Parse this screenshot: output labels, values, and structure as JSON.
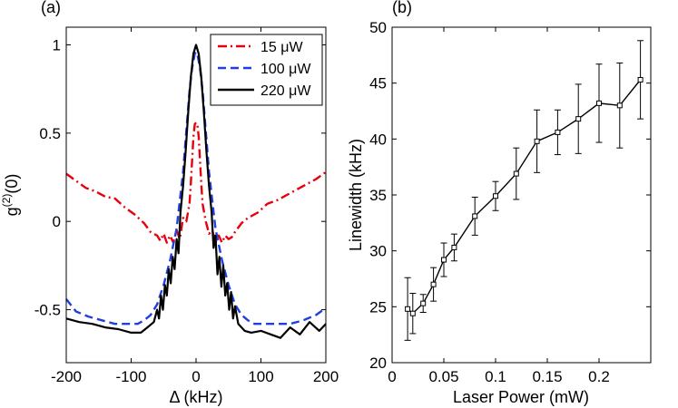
{
  "chart_data": [
    {
      "type": "line",
      "panel_label": "(a)",
      "xlabel": "Δ (kHz)",
      "ylabel": "g(2)(0)",
      "ylabel_base": "g",
      "ylabel_sup": "(2)",
      "ylabel_tail": "(0)",
      "xlim": [
        -200,
        200
      ],
      "ylim": [
        -0.8,
        1.1
      ],
      "xticks": [
        -200,
        -100,
        0,
        100,
        200
      ],
      "yticks": [
        -0.5,
        0,
        0.5,
        1
      ],
      "legend_position": "top-right",
      "series": [
        {
          "name": "15 μW",
          "color": "#e8000b",
          "style": "dashdot",
          "x": [
            -200,
            -185,
            -170,
            -155,
            -140,
            -125,
            -110,
            -95,
            -80,
            -70,
            -60,
            -55,
            -50,
            -45,
            -40,
            -35,
            -30,
            -25,
            -20,
            -15,
            -10,
            -8,
            -6,
            -4,
            -2,
            0,
            2,
            4,
            6,
            8,
            10,
            15,
            20,
            25,
            30,
            35,
            40,
            45,
            50,
            55,
            60,
            70,
            80,
            95,
            110,
            125,
            140,
            155,
            170,
            185,
            200
          ],
          "y": [
            0.27,
            0.23,
            0.19,
            0.17,
            0.14,
            0.13,
            0.08,
            0.04,
            -0.01,
            -0.06,
            -0.08,
            -0.11,
            -0.07,
            -0.12,
            -0.08,
            -0.12,
            -0.05,
            -0.1,
            0.02,
            0.0,
            0.1,
            0.22,
            0.35,
            0.48,
            0.55,
            0.56,
            0.55,
            0.48,
            0.35,
            0.22,
            0.1,
            0.0,
            -0.07,
            -0.05,
            -0.12,
            -0.08,
            -0.12,
            -0.08,
            -0.1,
            -0.09,
            -0.06,
            -0.01,
            0.02,
            0.05,
            0.1,
            0.12,
            0.15,
            0.18,
            0.21,
            0.24,
            0.28
          ]
        },
        {
          "name": "100 μW",
          "color": "#1f3fe0",
          "style": "dashed",
          "x": [
            -200,
            -185,
            -165,
            -145,
            -125,
            -105,
            -90,
            -80,
            -70,
            -60,
            -50,
            -40,
            -30,
            -20,
            -10,
            -6,
            -2,
            0,
            2,
            6,
            10,
            20,
            30,
            40,
            50,
            60,
            70,
            80,
            90,
            105,
            125,
            145,
            165,
            185,
            200
          ],
          "y": [
            -0.44,
            -0.51,
            -0.54,
            -0.56,
            -0.58,
            -0.58,
            -0.58,
            -0.56,
            -0.53,
            -0.47,
            -0.36,
            -0.22,
            -0.04,
            0.28,
            0.74,
            0.87,
            0.95,
            0.96,
            0.95,
            0.87,
            0.74,
            0.28,
            -0.04,
            -0.22,
            -0.36,
            -0.47,
            -0.53,
            -0.56,
            -0.58,
            -0.58,
            -0.58,
            -0.58,
            -0.56,
            -0.53,
            -0.49
          ]
        },
        {
          "name": "220 μW",
          "color": "#000000",
          "style": "solid",
          "x": [
            -200,
            -180,
            -160,
            -140,
            -120,
            -100,
            -85,
            -75,
            -65,
            -60,
            -57,
            -54,
            -51,
            -48,
            -45,
            -42,
            -39,
            -36,
            -33,
            -30,
            -27,
            -24,
            -20,
            -16,
            -12,
            -8,
            -4,
            0,
            4,
            8,
            12,
            16,
            20,
            24,
            27,
            30,
            33,
            36,
            39,
            42,
            45,
            48,
            51,
            54,
            57,
            60,
            65,
            75,
            85,
            100,
            115,
            130,
            145,
            160,
            175,
            190,
            200
          ],
          "y": [
            -0.55,
            -0.57,
            -0.58,
            -0.6,
            -0.61,
            -0.63,
            -0.63,
            -0.6,
            -0.57,
            -0.5,
            -0.55,
            -0.42,
            -0.5,
            -0.36,
            -0.42,
            -0.27,
            -0.35,
            -0.2,
            -0.27,
            -0.1,
            -0.18,
            0.05,
            0.2,
            0.4,
            0.62,
            0.82,
            0.95,
            1.0,
            0.95,
            0.82,
            0.62,
            0.4,
            0.2,
            0.05,
            -0.15,
            -0.08,
            -0.3,
            -0.2,
            -0.37,
            -0.25,
            -0.42,
            -0.35,
            -0.5,
            -0.4,
            -0.55,
            -0.48,
            -0.58,
            -0.62,
            -0.63,
            -0.62,
            -0.64,
            -0.66,
            -0.6,
            -0.64,
            -0.57,
            -0.62,
            -0.58
          ]
        }
      ]
    },
    {
      "type": "line",
      "panel_label": "(b)",
      "xlabel": "Laser Power (mW)",
      "ylabel": "Linewidth (kHz)",
      "xlim": [
        0,
        0.25
      ],
      "ylim": [
        20,
        50
      ],
      "xticks": [
        0,
        0.05,
        0.1,
        0.15,
        0.2
      ],
      "xtick_labels": [
        "0",
        "0.05",
        "0.1",
        "0.15",
        "0.2"
      ],
      "yticks": [
        20,
        25,
        30,
        35,
        40,
        45,
        50
      ],
      "marker": "square",
      "error_bars": true,
      "series": [
        {
          "name": "Linewidth",
          "color": "#000000",
          "x": [
            0.015,
            0.02,
            0.03,
            0.04,
            0.05,
            0.06,
            0.08,
            0.1,
            0.12,
            0.14,
            0.16,
            0.18,
            0.2,
            0.22,
            0.24
          ],
          "y": [
            24.8,
            24.4,
            25.3,
            27.0,
            29.2,
            30.3,
            33.1,
            34.9,
            36.9,
            39.8,
            40.6,
            41.8,
            43.2,
            43.0,
            45.3
          ],
          "err": [
            2.8,
            1.8,
            0.8,
            1.5,
            1.5,
            1.2,
            1.7,
            1.3,
            2.3,
            2.8,
            2.0,
            3.1,
            3.5,
            3.8,
            3.5
          ]
        }
      ]
    }
  ]
}
